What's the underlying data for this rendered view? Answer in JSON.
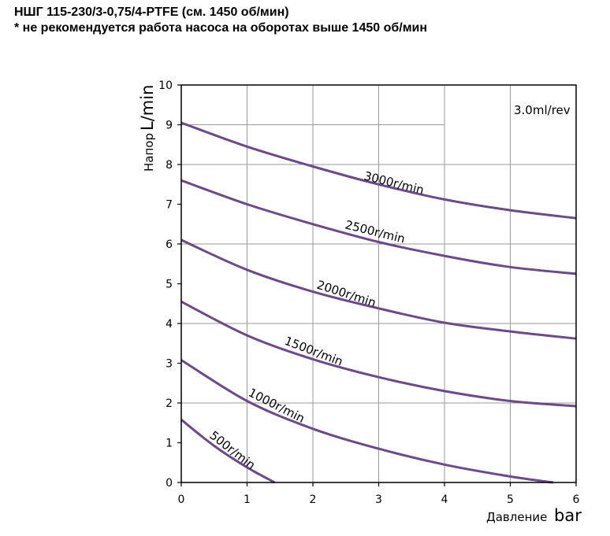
{
  "header": {
    "title": "НШГ 115-230/3-0,75/4-PTFE (см. 1450 об/мин)",
    "note": "* не рекомендуется работа насоса на оборотах выше 1450 об/мин"
  },
  "colors": {
    "curve": "#6a4a8b",
    "grid": "#9a9a9a",
    "axis": "#000000"
  },
  "chart_data": {
    "type": "line",
    "title": "",
    "annotation": "3.0ml/rev",
    "xlabel_prefix": "Давление",
    "xlabel_unit": "bar",
    "ylabel_prefix": "Напор",
    "ylabel_unit": "L/min",
    "xlim": [
      0,
      6
    ],
    "ylim": [
      0,
      10
    ],
    "xticks": [
      "0",
      "1",
      "2",
      "3",
      "4",
      "5",
      "6"
    ],
    "yticks": [
      "0",
      "1",
      "2",
      "3",
      "4",
      "5",
      "6",
      "7",
      "8",
      "9",
      "10"
    ],
    "grid": true,
    "series": [
      {
        "name": "3000r/min",
        "x": [
          0,
          1,
          2,
          3,
          4,
          5,
          6
        ],
        "y": [
          9.05,
          8.45,
          7.95,
          7.5,
          7.12,
          6.85,
          6.65
        ]
      },
      {
        "name": "2500r/min",
        "x": [
          0,
          1,
          2,
          3,
          4,
          5,
          6
        ],
        "y": [
          7.6,
          7.0,
          6.5,
          6.05,
          5.7,
          5.42,
          5.25
        ]
      },
      {
        "name": "2000r/min",
        "x": [
          0,
          1,
          2,
          3,
          4,
          5,
          6
        ],
        "y": [
          6.1,
          5.35,
          4.8,
          4.38,
          4.02,
          3.8,
          3.62
        ]
      },
      {
        "name": "1500r/min",
        "x": [
          0,
          1,
          2,
          3,
          4,
          5,
          6
        ],
        "y": [
          4.55,
          3.7,
          3.1,
          2.65,
          2.3,
          2.05,
          1.92
        ]
      },
      {
        "name": "1000r/min",
        "x": [
          0,
          1,
          2,
          3,
          4,
          5,
          5.65
        ],
        "y": [
          3.08,
          2.05,
          1.35,
          0.85,
          0.45,
          0.15,
          0.0
        ]
      },
      {
        "name": "500r/min",
        "x": [
          0,
          0.5,
          1.0,
          1.42
        ],
        "y": [
          1.58,
          0.92,
          0.38,
          0.0
        ]
      }
    ]
  }
}
